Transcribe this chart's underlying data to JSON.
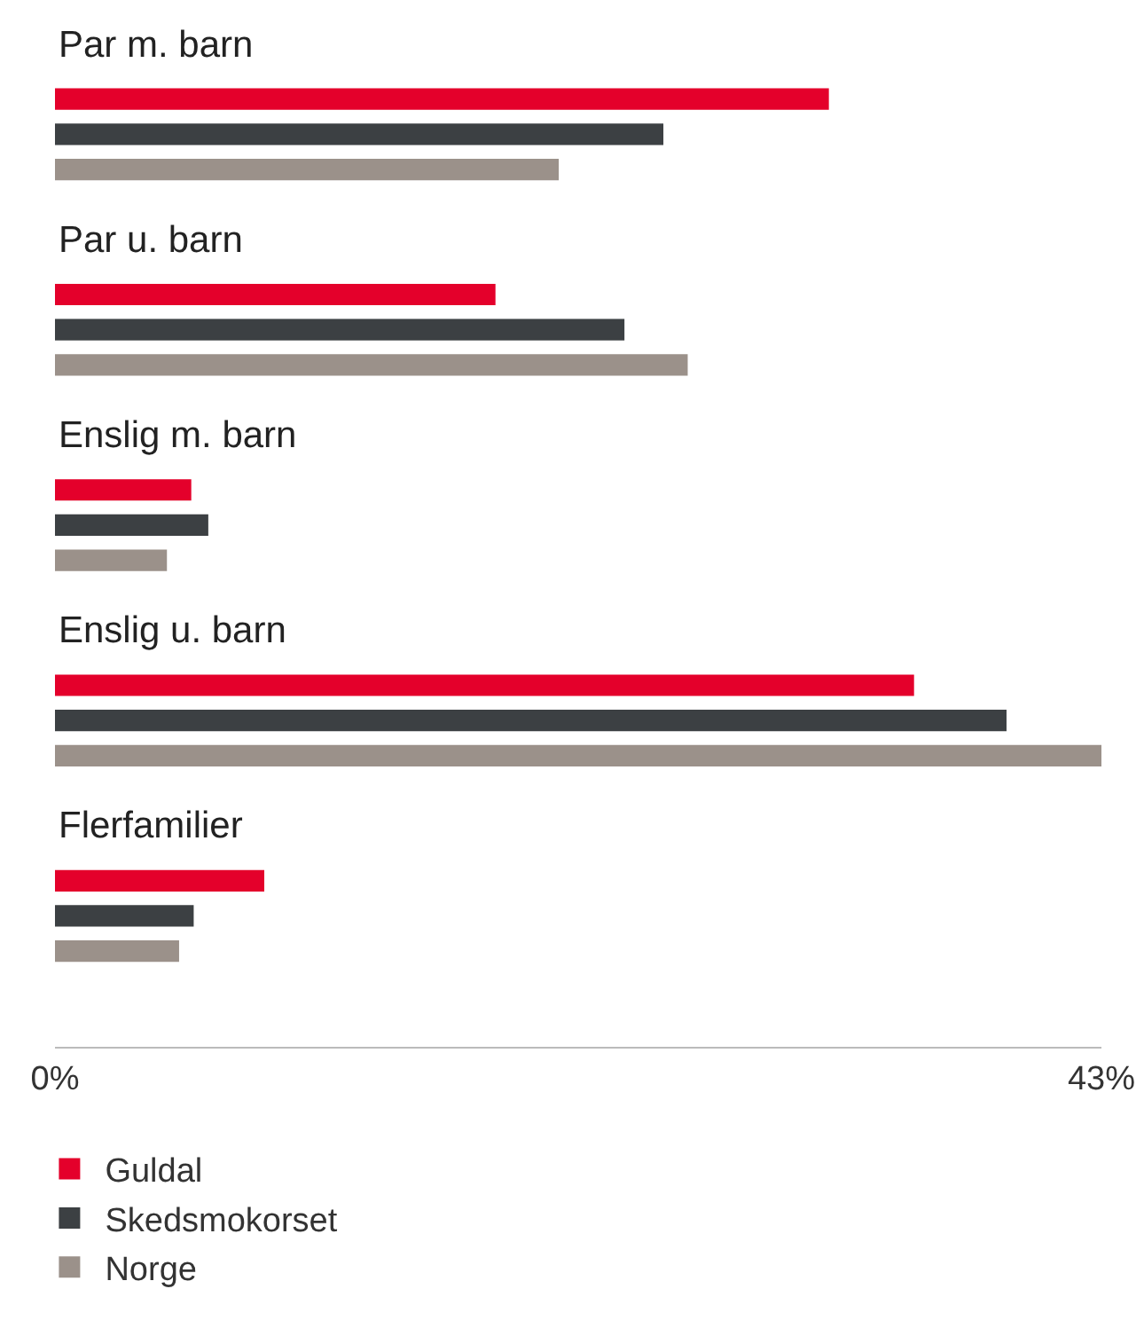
{
  "chart_data": {
    "type": "bar",
    "orientation": "horizontal",
    "categories": [
      "Par m. barn",
      "Par u. barn",
      "Enslig m. barn",
      "Enslig u. barn",
      "Flerfamilier"
    ],
    "series": [
      {
        "name": "Guldal",
        "color": "#e4002b",
        "values": [
          31.8,
          18.1,
          5.6,
          35.3,
          8.6
        ]
      },
      {
        "name": "Skedsmokorset",
        "color": "#3c4043",
        "values": [
          25.0,
          23.4,
          6.3,
          39.1,
          5.7
        ]
      },
      {
        "name": "Norge",
        "color": "#9b918a",
        "values": [
          20.7,
          26.0,
          4.6,
          43.0,
          5.1
        ]
      }
    ],
    "xlim": [
      0,
      43
    ],
    "xticks": [
      {
        "value": 0,
        "label": "0%"
      },
      {
        "value": 43,
        "label": "43%"
      }
    ],
    "legend": "bottom"
  }
}
